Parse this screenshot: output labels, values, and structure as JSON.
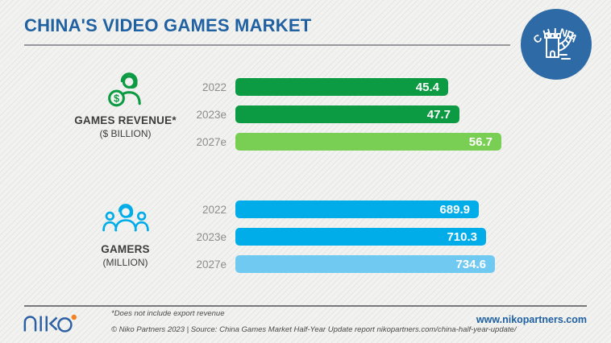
{
  "header": {
    "title": "CHINA'S VIDEO GAMES MARKET"
  },
  "badge": {
    "label": "CHINA"
  },
  "colors": {
    "title_blue": "#2061a2",
    "badge_blue": "#2e6ba6",
    "green_dark": "#0c9b43",
    "green_light": "#78cf53",
    "blue_dark": "#00ade9",
    "blue_light": "#70c9f0",
    "gray_label": "#8d8d8d",
    "text_dark": "#3d3d3c",
    "footer_text": "#4a4a4a",
    "logo_blue": "#2b5fa5",
    "orange_dot": "#f58220"
  },
  "chart_data": [
    {
      "type": "bar",
      "title": "GAMES REVENUE*",
      "subtitle": "($ BILLION)",
      "icon": "revenue-headset-coin-icon",
      "categories": [
        "2022",
        "2023e",
        "2027e"
      ],
      "values": [
        45.4,
        47.7,
        56.7
      ],
      "bar_colors": [
        "#0c9b43",
        "#0c9b43",
        "#78cf53"
      ],
      "value_labels": [
        "45.4",
        "47.7",
        "56.7"
      ],
      "xlim": [
        0,
        56.7
      ],
      "grid": false,
      "legend": "none"
    },
    {
      "type": "bar",
      "title": "GAMERS",
      "subtitle": "(MILLION)",
      "icon": "gamers-people-icon",
      "categories": [
        "2022",
        "2023e",
        "2027e"
      ],
      "values": [
        689.9,
        710.3,
        734.6
      ],
      "bar_colors": [
        "#00ade9",
        "#00ade9",
        "#70c9f0"
      ],
      "value_labels": [
        "689.9",
        "710.3",
        "734.6"
      ],
      "xlim": [
        0,
        734.6
      ],
      "grid": false,
      "legend": "none"
    }
  ],
  "footer": {
    "logo_text": "niko",
    "footnote": "*Does not include export revenue",
    "source": "© Niko Partners 2023  |  Source: China Games Market Half-Year Update report nikopartners.com/china-half-year-update/",
    "website": "www.nikopartners.com"
  }
}
